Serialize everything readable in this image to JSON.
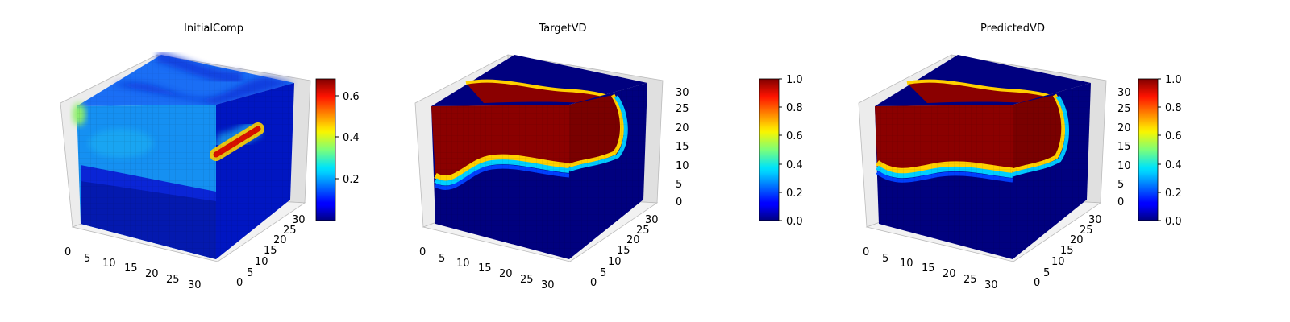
{
  "figure": {
    "colormap": "jet",
    "panels": [
      {
        "title": "InitialComp",
        "colorbar": {
          "min": 0.0,
          "max": 0.68,
          "ticks": [
            0.2,
            0.4,
            0.6
          ],
          "tick_labels": [
            "0.2",
            "0.4",
            "0.6"
          ]
        },
        "x_ticks": [
          "0",
          "5",
          "10",
          "15",
          "20",
          "25",
          "30"
        ],
        "y_ticks": [
          "0",
          "5",
          "10",
          "15",
          "20",
          "25",
          "30"
        ],
        "z_ticks": [
          "",
          "",
          "",
          "",
          "",
          "",
          ""
        ]
      },
      {
        "title": "TargetVD",
        "colorbar": {
          "min": 0.0,
          "max": 1.0,
          "ticks": [
            0.0,
            0.2,
            0.4,
            0.6,
            0.8,
            1.0
          ],
          "tick_labels": [
            "0.0",
            "0.2",
            "0.4",
            "0.6",
            "0.8",
            "1.0"
          ]
        },
        "x_ticks": [
          "0",
          "5",
          "10",
          "15",
          "20",
          "25",
          "30"
        ],
        "y_ticks": [
          "0",
          "5",
          "10",
          "15",
          "20",
          "25",
          "30"
        ],
        "z_ticks": [
          "0",
          "5",
          "10",
          "15",
          "20",
          "25",
          "30"
        ]
      },
      {
        "title": "PredictedVD",
        "colorbar": {
          "min": 0.0,
          "max": 1.0,
          "ticks": [
            0.0,
            0.2,
            0.4,
            0.6,
            0.8,
            1.0
          ],
          "tick_labels": [
            "0.0",
            "0.2",
            "0.4",
            "0.6",
            "0.8",
            "1.0"
          ]
        },
        "x_ticks": [
          "0",
          "5",
          "10",
          "15",
          "20",
          "25",
          "30"
        ],
        "y_ticks": [
          "0",
          "5",
          "10",
          "15",
          "20",
          "25",
          "30"
        ],
        "z_ticks": [
          "0",
          "5",
          "10",
          "15",
          "20",
          "25",
          "30"
        ]
      }
    ]
  },
  "chart_data": [
    {
      "type": "heatmap",
      "title": "InitialComp",
      "x_range": [
        0,
        32
      ],
      "y_range": [
        0,
        32
      ],
      "z_range": [
        0,
        32
      ],
      "x_ticks": [
        0,
        5,
        10,
        15,
        20,
        25,
        30
      ],
      "y_ticks": [
        0,
        5,
        10,
        15,
        20,
        25,
        30
      ],
      "value_range": [
        0.0,
        0.68
      ],
      "colorbar_ticks": [
        0.2,
        0.4,
        0.6
      ],
      "grid": true
    },
    {
      "type": "heatmap",
      "title": "TargetVD",
      "x_range": [
        0,
        32
      ],
      "y_range": [
        0,
        32
      ],
      "z_range": [
        0,
        32
      ],
      "x_ticks": [
        0,
        5,
        10,
        15,
        20,
        25,
        30
      ],
      "y_ticks": [
        0,
        5,
        10,
        15,
        20,
        25,
        30
      ],
      "z_ticks": [
        0,
        5,
        10,
        15,
        20,
        25,
        30
      ],
      "value_range": [
        0.0,
        1.0
      ],
      "colorbar_ticks": [
        0.0,
        0.2,
        0.4,
        0.6,
        0.8,
        1.0
      ],
      "grid": true
    },
    {
      "type": "heatmap",
      "title": "PredictedVD",
      "x_range": [
        0,
        32
      ],
      "y_range": [
        0,
        32
      ],
      "z_range": [
        0,
        32
      ],
      "x_ticks": [
        0,
        5,
        10,
        15,
        20,
        25,
        30
      ],
      "y_ticks": [
        0,
        5,
        10,
        15,
        20,
        25,
        30
      ],
      "z_ticks": [
        0,
        5,
        10,
        15,
        20,
        25,
        30
      ],
      "value_range": [
        0.0,
        1.0
      ],
      "colorbar_ticks": [
        0.0,
        0.2,
        0.4,
        0.6,
        0.8,
        1.0
      ],
      "grid": true
    }
  ]
}
